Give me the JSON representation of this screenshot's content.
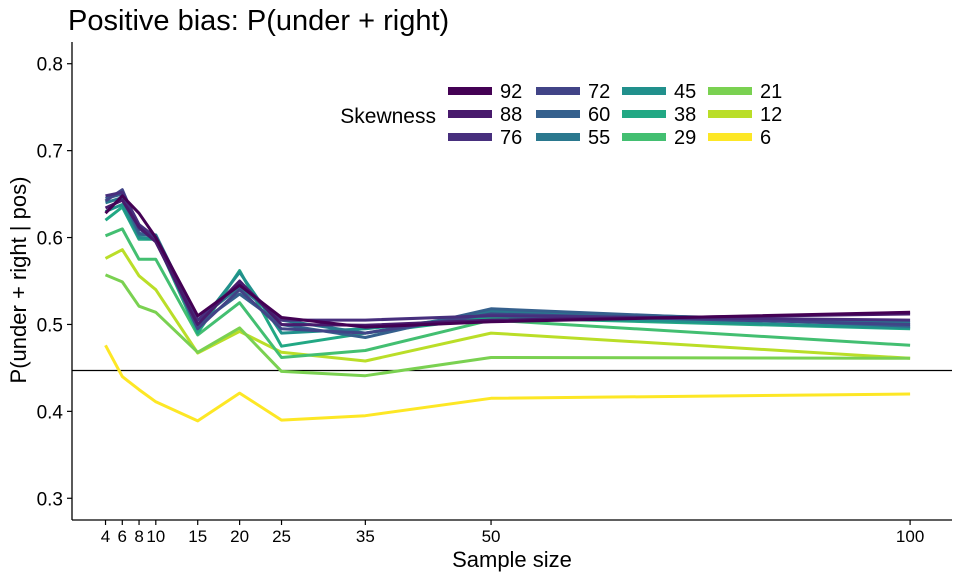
{
  "chart_data": {
    "type": "line",
    "title": "Positive bias: P(under + right)",
    "xlabel": "Sample size",
    "ylabel": "P(under + right | pos)",
    "x": [
      4,
      6,
      8,
      10,
      15,
      20,
      25,
      35,
      50,
      100
    ],
    "x_ticks": [
      4,
      6,
      8,
      10,
      15,
      20,
      25,
      35,
      50,
      100
    ],
    "y_ticks": [
      "0.3",
      "0.4",
      "0.5",
      "0.6",
      "0.7",
      "0.8"
    ],
    "xlim": [
      0,
      105
    ],
    "ylim": [
      0.275,
      0.825
    ],
    "grid": false,
    "reference_line": 0.447,
    "legend": {
      "title": "Skewness",
      "placement": "top-center",
      "columns": 4
    },
    "series": [
      {
        "name": "92",
        "color": "#440154",
        "values": [
          0.628,
          0.648,
          0.628,
          0.6,
          0.51,
          0.545,
          0.508,
          0.497,
          0.503,
          0.514
        ]
      },
      {
        "name": "88",
        "color": "#481A6C",
        "values": [
          0.634,
          0.643,
          0.612,
          0.595,
          0.5,
          0.55,
          0.5,
          0.499,
          0.505,
          0.512
        ]
      },
      {
        "name": "76",
        "color": "#472F7D",
        "values": [
          0.648,
          0.652,
          0.615,
          0.6,
          0.505,
          0.548,
          0.505,
          0.505,
          0.51,
          0.505
        ]
      },
      {
        "name": "72",
        "color": "#414487",
        "values": [
          0.642,
          0.655,
          0.61,
          0.598,
          0.495,
          0.54,
          0.495,
          0.49,
          0.512,
          0.5
        ]
      },
      {
        "name": "60",
        "color": "#35608D",
        "values": [
          0.645,
          0.65,
          0.605,
          0.6,
          0.5,
          0.535,
          0.5,
          0.485,
          0.518,
          0.498
        ]
      },
      {
        "name": "55",
        "color": "#2A788E",
        "values": [
          0.64,
          0.646,
          0.603,
          0.603,
          0.505,
          0.543,
          0.505,
          0.49,
          0.515,
          0.502
        ]
      },
      {
        "name": "45",
        "color": "#21908C",
        "values": [
          0.63,
          0.638,
          0.6,
          0.598,
          0.498,
          0.56,
          0.49,
          0.495,
          0.51,
          0.496
        ]
      },
      {
        "name": "38",
        "color": "#22A884",
        "values": [
          0.62,
          0.635,
          0.598,
          0.598,
          0.49,
          0.562,
          0.475,
          0.49,
          0.508,
          0.495
        ]
      },
      {
        "name": "29",
        "color": "#43BF71",
        "values": [
          0.602,
          0.61,
          0.575,
          0.575,
          0.488,
          0.525,
          0.462,
          0.47,
          0.505,
          0.476
        ]
      },
      {
        "name": "21",
        "color": "#7AD151",
        "values": [
          0.557,
          0.549,
          0.521,
          0.514,
          0.468,
          0.496,
          0.446,
          0.441,
          0.462,
          0.461
        ]
      },
      {
        "name": "12",
        "color": "#BADE28",
        "values": [
          0.576,
          0.586,
          0.556,
          0.54,
          0.467,
          0.492,
          0.468,
          0.458,
          0.49,
          0.461
        ]
      },
      {
        "name": "6",
        "color": "#FDE725",
        "values": [
          0.476,
          0.44,
          0.425,
          0.411,
          0.389,
          0.421,
          0.39,
          0.395,
          0.415,
          0.42
        ]
      }
    ]
  }
}
